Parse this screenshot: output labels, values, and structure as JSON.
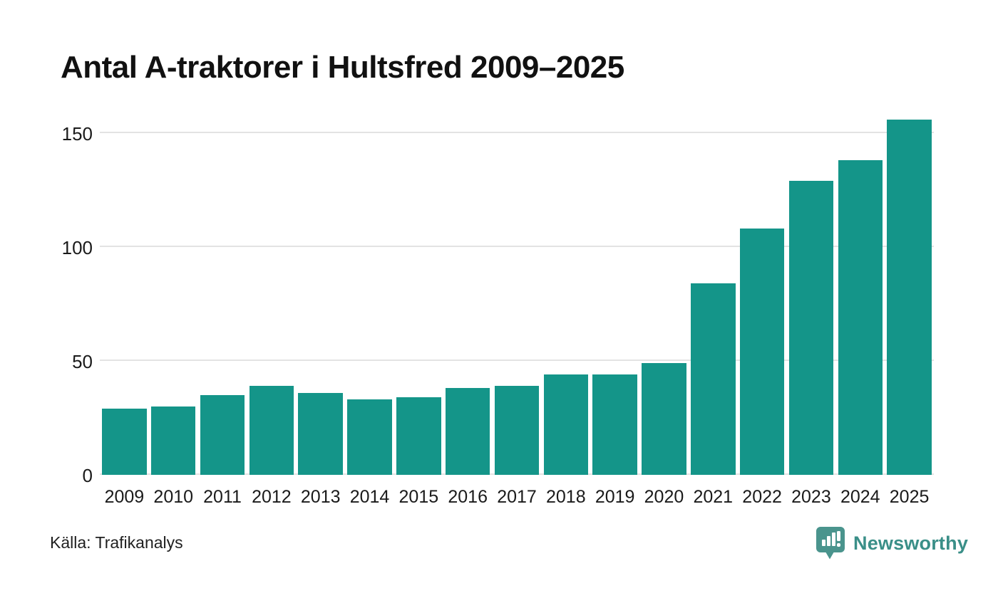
{
  "title": "Antal A-traktorer i Hultsfred 2009–2025",
  "source": "Källa: Trafikanalys",
  "branding": {
    "name": "Newsworthy",
    "logo_icon": "newsworthy-speech-bubble-chart-icon"
  },
  "colors": {
    "bar": "#149589",
    "gridline": "#e3e3e3",
    "title_text": "#111111",
    "axis_text": "#1a1a1a",
    "brand_teal": "#3a8f88",
    "logo_mark": "#4a948d"
  },
  "chart_data": {
    "type": "bar",
    "title": "Antal A-traktorer i Hultsfred 2009–2025",
    "categories": [
      "2009",
      "2010",
      "2011",
      "2012",
      "2013",
      "2014",
      "2015",
      "2016",
      "2017",
      "2018",
      "2019",
      "2020",
      "2021",
      "2022",
      "2023",
      "2024",
      "2025"
    ],
    "values": [
      29,
      30,
      35,
      39,
      36,
      33,
      34,
      38,
      39,
      44,
      44,
      49,
      84,
      108,
      129,
      138,
      156
    ],
    "xlabel": "",
    "ylabel": "",
    "yticks": [
      0,
      50,
      100,
      150
    ],
    "ylim": [
      0,
      160
    ],
    "grid": true,
    "legend": "none",
    "source_note": "Källa: Trafikanalys"
  }
}
